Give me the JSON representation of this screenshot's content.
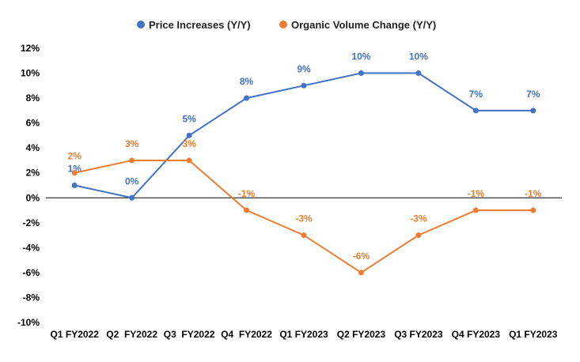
{
  "chart_data": {
    "type": "line",
    "title": "",
    "xlabel": "",
    "ylabel": "",
    "categories": [
      "Q1 FY2022",
      "Q2  FY2022",
      "Q3  FY2022",
      "Q4  FY2022",
      "Q1 FY2023",
      "Q2 FY2023",
      "Q3 FY2023",
      "Q4 FY2023",
      "Q1 FY2023"
    ],
    "ylim": [
      -10,
      12
    ],
    "yticks": [
      -10,
      -8,
      -6,
      -4,
      -2,
      0,
      2,
      4,
      6,
      8,
      10,
      12
    ],
    "y_tick_format": "%",
    "grid": false,
    "legend_position": "top",
    "series": [
      {
        "name": "Price Increases (Y/Y)",
        "color": "#4472C4",
        "values": [
          1,
          0,
          5,
          8,
          9,
          10,
          10,
          7,
          7
        ]
      },
      {
        "name": "Organic Volume Change (Y/Y)",
        "color": "#ED7D31",
        "values": [
          2,
          3,
          3,
          -1,
          -3,
          -6,
          -3,
          -1,
          -1
        ]
      }
    ]
  }
}
